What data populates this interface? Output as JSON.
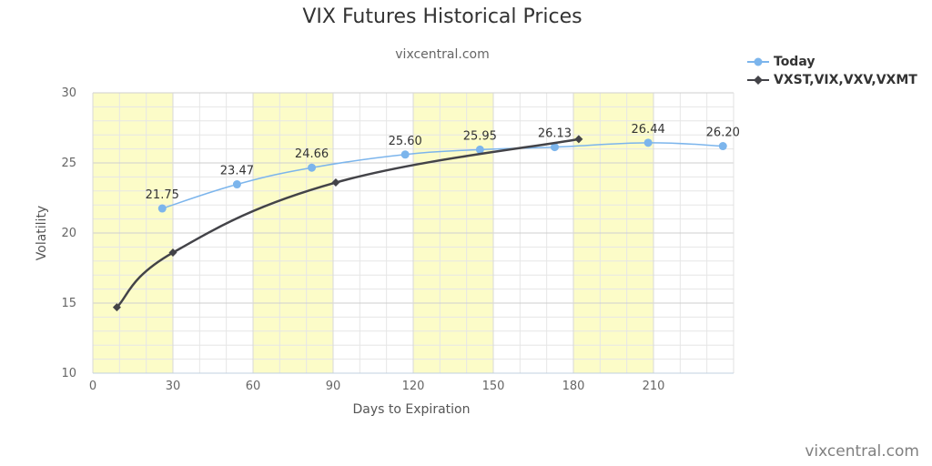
{
  "chart_data": {
    "type": "line",
    "title": "VIX Futures Historical Prices",
    "subtitle": "vixcentral.com",
    "xlabel": "Days to Expiration",
    "ylabel": "Volatility",
    "xlim": [
      0,
      240
    ],
    "ylim": [
      10,
      30
    ],
    "xticks": [
      0,
      30,
      60,
      90,
      120,
      150,
      180,
      210
    ],
    "yticks": [
      10,
      15,
      20,
      25,
      30
    ],
    "shaded_bands": [
      [
        0,
        30
      ],
      [
        60,
        90
      ],
      [
        120,
        150
      ],
      [
        180,
        210
      ]
    ],
    "grid": true,
    "legend_position": "top-right",
    "series": [
      {
        "name": "Today",
        "color": "#7cb5ec",
        "marker": "circle",
        "x": [
          26,
          54,
          82,
          117,
          145,
          173,
          208,
          236
        ],
        "y": [
          21.75,
          23.47,
          24.66,
          25.6,
          25.95,
          26.13,
          26.44,
          26.2
        ],
        "labels": [
          "21.75",
          "23.47",
          "24.66",
          "25.60",
          "25.95",
          "26.13",
          "26.44",
          "26.20"
        ]
      },
      {
        "name": "VXST,VIX,VXV,VXMT",
        "color": "#434348",
        "marker": "diamond",
        "x": [
          9,
          30,
          91,
          182
        ],
        "y": [
          14.7,
          18.6,
          23.6,
          26.7
        ]
      }
    ]
  },
  "watermark": "vixcentral.com"
}
